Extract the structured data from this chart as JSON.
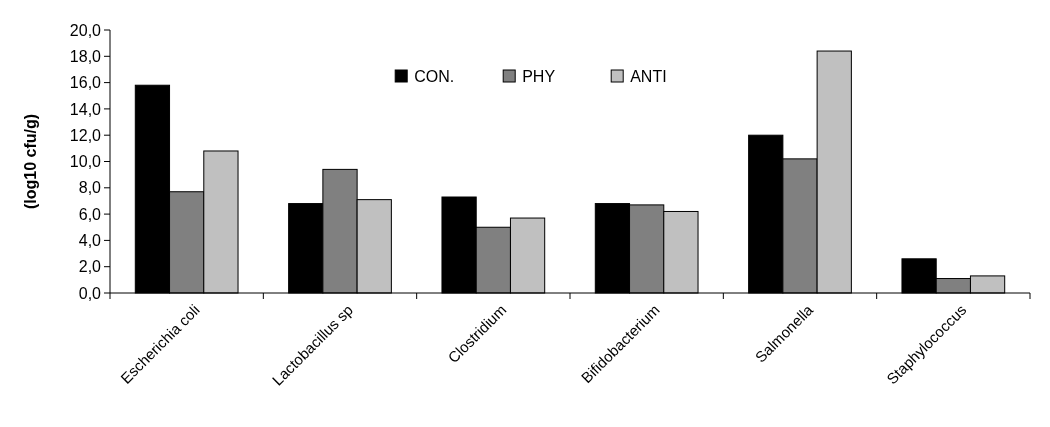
{
  "chart_data": {
    "type": "bar",
    "ylabel": "(log10 cfu/g)",
    "categories": [
      "Escherichia coli",
      "Lactobacillus sp",
      "Clostridium",
      "Bifidobacterium",
      "Salmonella",
      "Staphylococcus"
    ],
    "series": [
      {
        "name": "CON.",
        "color": "#000000",
        "values": [
          15.8,
          6.8,
          7.3,
          6.8,
          12.0,
          2.6
        ]
      },
      {
        "name": "PHY",
        "color": "#808080",
        "values": [
          7.7,
          9.4,
          5.0,
          6.7,
          10.2,
          1.1
        ]
      },
      {
        "name": "ANTI",
        "color": "#c0c0c0",
        "values": [
          10.8,
          7.1,
          5.7,
          6.2,
          18.4,
          1.3
        ]
      }
    ],
    "ylim": [
      0,
      20
    ],
    "yticks": [
      {
        "value": 0,
        "label": "0,0"
      },
      {
        "value": 2,
        "label": "2,0"
      },
      {
        "value": 4,
        "label": "4,0"
      },
      {
        "value": 6,
        "label": "6,0"
      },
      {
        "value": 8,
        "label": "8,0"
      },
      {
        "value": 10,
        "label": "10,0"
      },
      {
        "value": 12,
        "label": "12,0"
      },
      {
        "value": 14,
        "label": "14,0"
      },
      {
        "value": 16,
        "label": "16,0"
      },
      {
        "value": 18,
        "label": "18,0"
      },
      {
        "value": 20,
        "label": "20,0"
      }
    ],
    "grid": false,
    "legend": "top"
  }
}
